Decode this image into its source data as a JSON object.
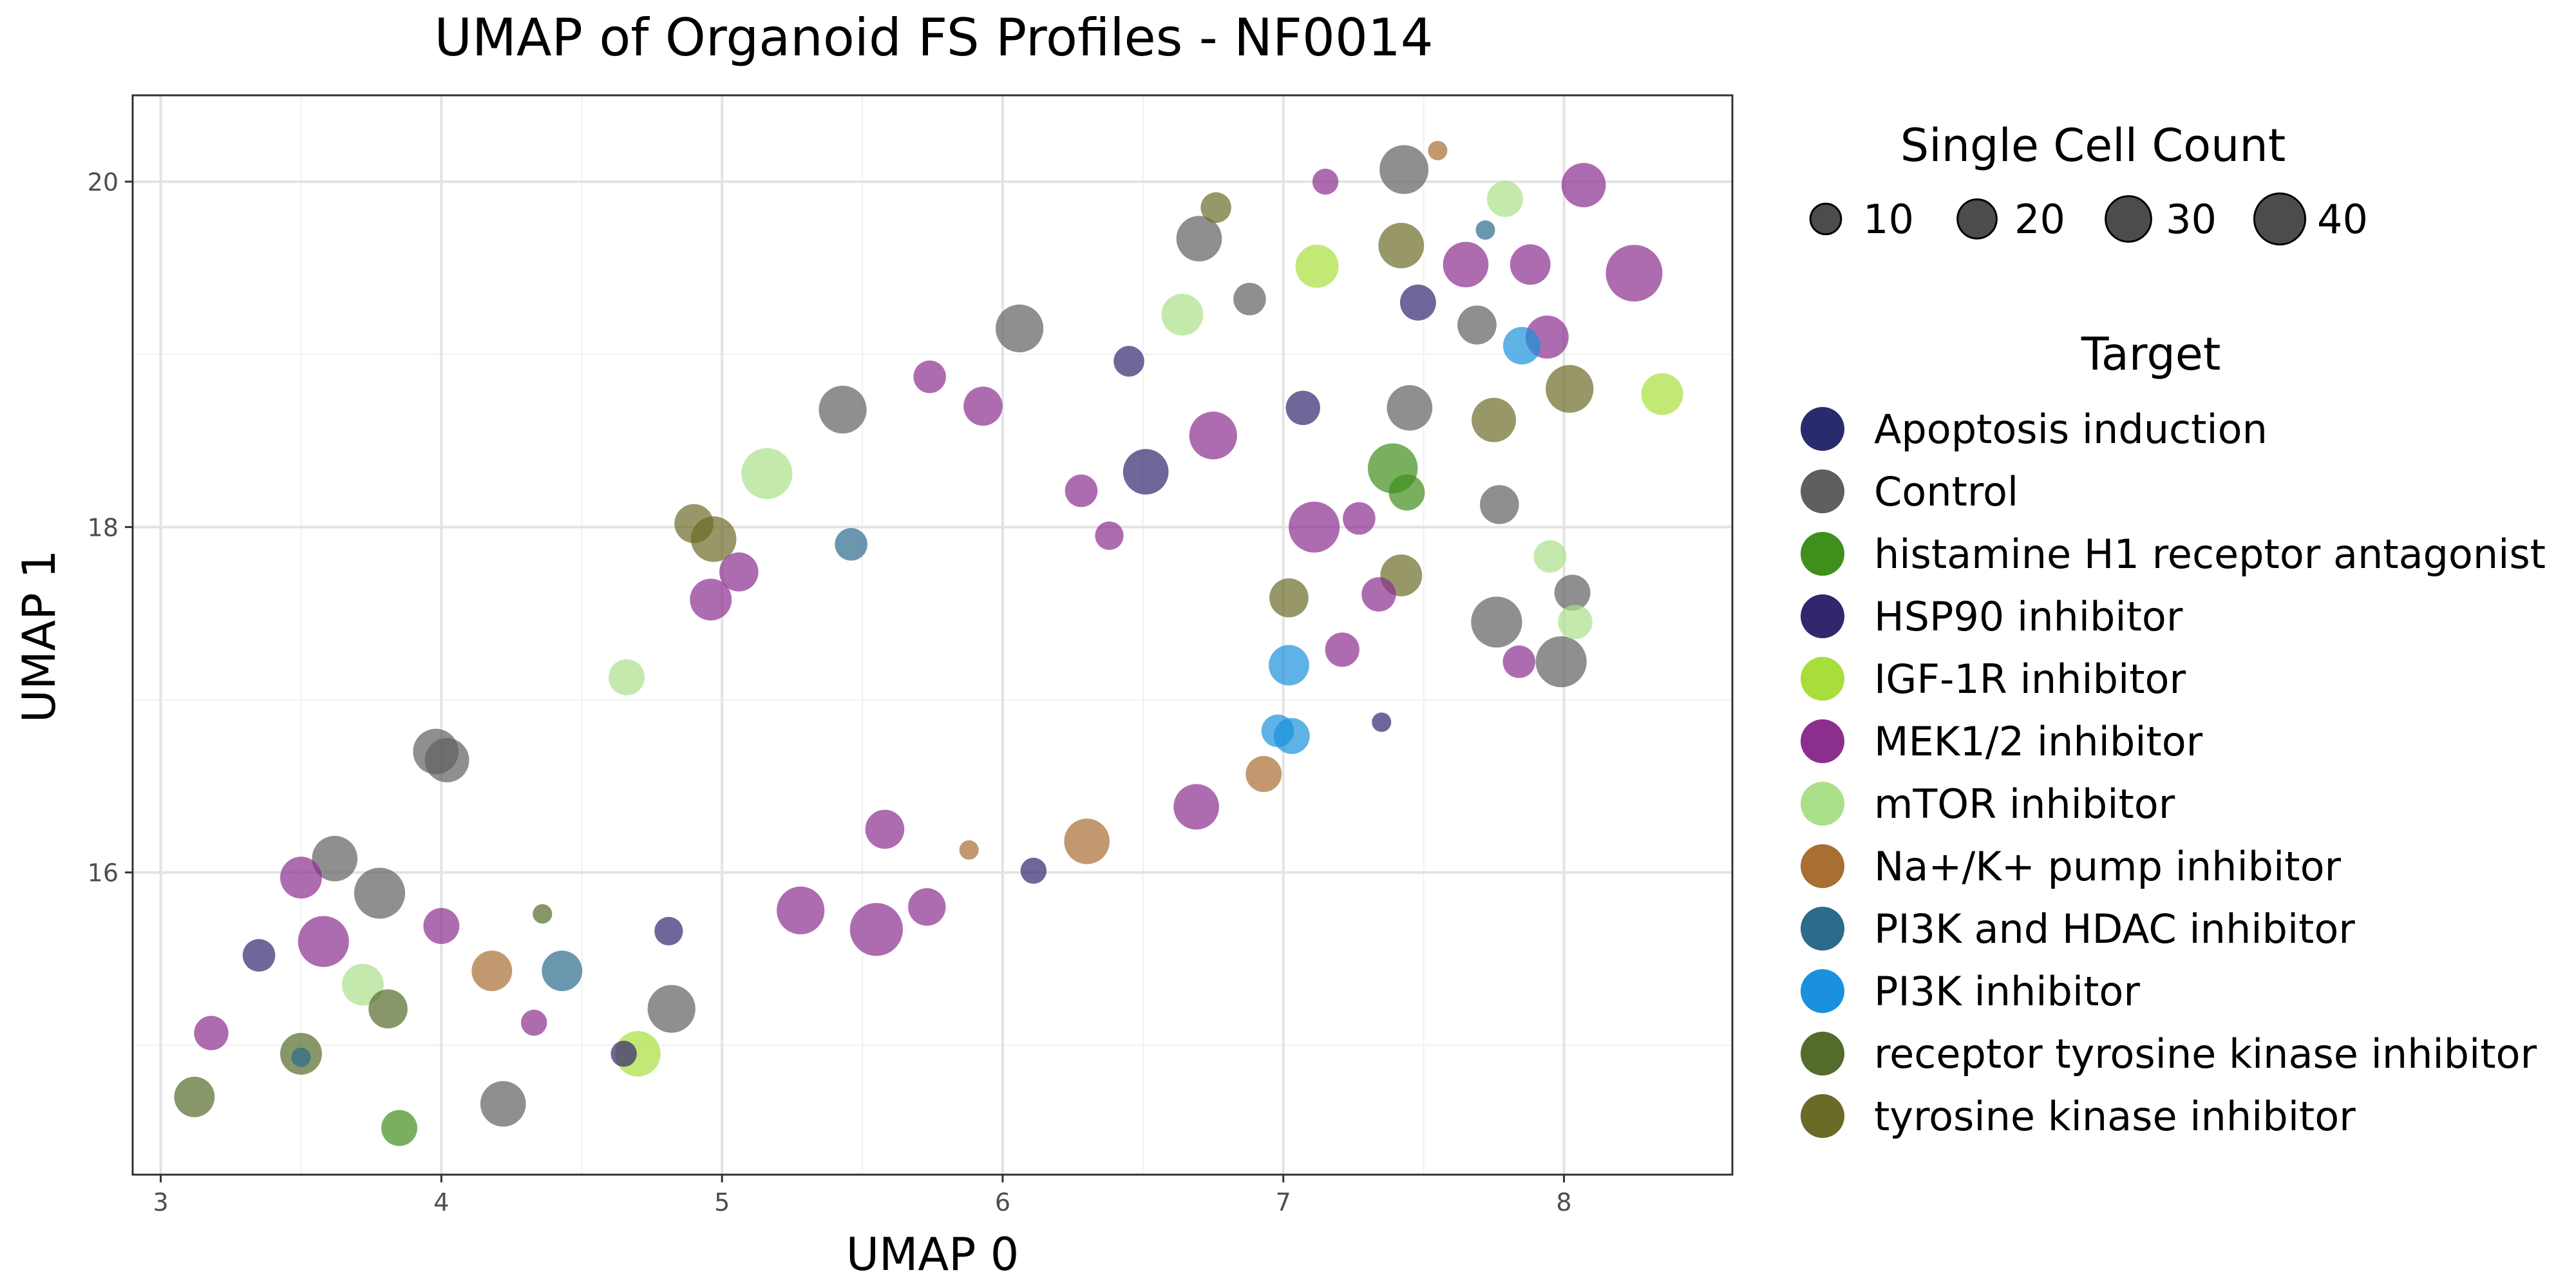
{
  "chart_data": {
    "type": "scatter",
    "title": "UMAP of Organoid FS Profiles - NF0014",
    "xlabel": "UMAP 0",
    "ylabel": "UMAP 1",
    "xlim": [
      2.9,
      8.6
    ],
    "ylim": [
      14.25,
      20.5
    ],
    "x_ticks": [
      3,
      4,
      5,
      6,
      7,
      8
    ],
    "y_ticks": [
      16,
      18,
      20
    ],
    "grid": true,
    "legend_placement": "right",
    "size_legend": {
      "title": "Single Cell Count",
      "values": [
        10,
        20,
        30,
        40
      ],
      "labels": [
        "10",
        "20",
        "30",
        "40"
      ]
    },
    "color_legend": {
      "title": "Target",
      "entries": [
        {
          "name": "Apoptosis induction",
          "color": "#2a2a6e"
        },
        {
          "name": "Control",
          "color": "#5f5f5f"
        },
        {
          "name": "histamine H1 receptor antagonist",
          "color": "#3f8f1d"
        },
        {
          "name": "HSP90 inhibitor",
          "color": "#33256e"
        },
        {
          "name": "IGF-1R inhibitor",
          "color": "#a8de3c"
        },
        {
          "name": "MEK1/2 inhibitor",
          "color": "#8b2e8e"
        },
        {
          "name": "mTOR inhibitor",
          "color": "#abe08a"
        },
        {
          "name": "Na+/K+ pump inhibitor",
          "color": "#a86e32"
        },
        {
          "name": "PI3K and HDAC inhibitor",
          "color": "#2c6b8b"
        },
        {
          "name": "PI3K inhibitor",
          "color": "#1991dc"
        },
        {
          "name": "receptor tyrosine kinase inhibitor",
          "color": "#556b2a"
        },
        {
          "name": "tyrosine kinase inhibitor",
          "color": "#6b6b28"
        }
      ]
    },
    "points": [
      {
        "x": 3.12,
        "y": 14.7,
        "size": 22,
        "target": "receptor tyrosine kinase inhibitor"
      },
      {
        "x": 3.18,
        "y": 15.07,
        "size": 14,
        "target": "MEK1/2 inhibitor"
      },
      {
        "x": 3.35,
        "y": 15.52,
        "size": 12,
        "target": "HSP90 inhibitor"
      },
      {
        "x": 3.5,
        "y": 15.97,
        "size": 24,
        "target": "MEK1/2 inhibitor"
      },
      {
        "x": 3.5,
        "y": 14.95,
        "size": 24,
        "target": "receptor tyrosine kinase inhibitor"
      },
      {
        "x": 3.5,
        "y": 14.93,
        "size": 2,
        "target": "PI3K and HDAC inhibitor"
      },
      {
        "x": 3.58,
        "y": 15.6,
        "size": 40,
        "target": "MEK1/2 inhibitor"
      },
      {
        "x": 3.62,
        "y": 16.08,
        "size": 30,
        "target": "Control"
      },
      {
        "x": 3.72,
        "y": 15.35,
        "size": 24,
        "target": "mTOR inhibitor"
      },
      {
        "x": 3.78,
        "y": 15.88,
        "size": 40,
        "target": "Control"
      },
      {
        "x": 3.81,
        "y": 15.21,
        "size": 20,
        "target": "receptor tyrosine kinase inhibitor"
      },
      {
        "x": 3.85,
        "y": 14.52,
        "size": 16,
        "target": "histamine H1 receptor antagonist"
      },
      {
        "x": 3.98,
        "y": 16.7,
        "size": 30,
        "target": "Control"
      },
      {
        "x": 4.0,
        "y": 15.69,
        "size": 16,
        "target": "MEK1/2 inhibitor"
      },
      {
        "x": 4.02,
        "y": 16.65,
        "size": 28,
        "target": "Control"
      },
      {
        "x": 4.18,
        "y": 15.43,
        "size": 22,
        "target": "Na+/K+ pump inhibitor"
      },
      {
        "x": 4.22,
        "y": 14.66,
        "size": 30,
        "target": "Control"
      },
      {
        "x": 4.33,
        "y": 15.13,
        "size": 6,
        "target": "MEK1/2 inhibitor"
      },
      {
        "x": 4.36,
        "y": 15.76,
        "size": 2,
        "target": "receptor tyrosine kinase inhibitor"
      },
      {
        "x": 4.43,
        "y": 15.43,
        "size": 22,
        "target": "PI3K and HDAC inhibitor"
      },
      {
        "x": 4.65,
        "y": 14.95,
        "size": 6,
        "target": "HSP90 inhibitor"
      },
      {
        "x": 4.66,
        "y": 17.13,
        "size": 16,
        "target": "mTOR inhibitor"
      },
      {
        "x": 4.7,
        "y": 14.95,
        "size": 30,
        "target": "IGF-1R inhibitor"
      },
      {
        "x": 4.81,
        "y": 15.66,
        "size": 8,
        "target": "HSP90 inhibitor"
      },
      {
        "x": 4.82,
        "y": 15.21,
        "size": 34,
        "target": "Control"
      },
      {
        "x": 4.9,
        "y": 18.02,
        "size": 20,
        "target": "tyrosine kinase inhibitor"
      },
      {
        "x": 4.96,
        "y": 17.58,
        "size": 24,
        "target": "MEK1/2 inhibitor"
      },
      {
        "x": 4.97,
        "y": 17.93,
        "size": 30,
        "target": "tyrosine kinase inhibitor"
      },
      {
        "x": 5.06,
        "y": 17.74,
        "size": 20,
        "target": "MEK1/2 inhibitor"
      },
      {
        "x": 5.16,
        "y": 18.31,
        "size": 40,
        "target": "mTOR inhibitor"
      },
      {
        "x": 5.28,
        "y": 15.78,
        "size": 34,
        "target": "MEK1/2 inhibitor"
      },
      {
        "x": 5.43,
        "y": 18.68,
        "size": 34,
        "target": "Control"
      },
      {
        "x": 5.46,
        "y": 17.9,
        "size": 12,
        "target": "PI3K and HDAC inhibitor"
      },
      {
        "x": 5.55,
        "y": 15.67,
        "size": 44,
        "target": "MEK1/2 inhibitor"
      },
      {
        "x": 5.58,
        "y": 16.25,
        "size": 20,
        "target": "MEK1/2 inhibitor"
      },
      {
        "x": 5.73,
        "y": 15.8,
        "size": 18,
        "target": "MEK1/2 inhibitor"
      },
      {
        "x": 5.74,
        "y": 18.87,
        "size": 12,
        "target": "MEK1/2 inhibitor"
      },
      {
        "x": 5.88,
        "y": 16.13,
        "size": 2,
        "target": "Na+/K+ pump inhibitor"
      },
      {
        "x": 5.93,
        "y": 18.7,
        "size": 20,
        "target": "MEK1/2 inhibitor"
      },
      {
        "x": 6.06,
        "y": 19.15,
        "size": 34,
        "target": "Control"
      },
      {
        "x": 6.11,
        "y": 16.01,
        "size": 6,
        "target": "HSP90 inhibitor"
      },
      {
        "x": 6.28,
        "y": 18.21,
        "size": 12,
        "target": "MEK1/2 inhibitor"
      },
      {
        "x": 6.3,
        "y": 16.18,
        "size": 30,
        "target": "Na+/K+ pump inhibitor"
      },
      {
        "x": 6.38,
        "y": 17.95,
        "size": 8,
        "target": "MEK1/2 inhibitor"
      },
      {
        "x": 6.45,
        "y": 18.96,
        "size": 10,
        "target": "HSP90 inhibitor"
      },
      {
        "x": 6.51,
        "y": 18.32,
        "size": 30,
        "target": "HSP90 inhibitor"
      },
      {
        "x": 6.64,
        "y": 19.23,
        "size": 24,
        "target": "mTOR inhibitor"
      },
      {
        "x": 6.69,
        "y": 16.38,
        "size": 30,
        "target": "MEK1/2 inhibitor"
      },
      {
        "x": 6.7,
        "y": 19.67,
        "size": 30,
        "target": "Control"
      },
      {
        "x": 6.75,
        "y": 18.53,
        "size": 34,
        "target": "MEK1/2 inhibitor"
      },
      {
        "x": 6.76,
        "y": 19.85,
        "size": 10,
        "target": "tyrosine kinase inhibitor"
      },
      {
        "x": 6.88,
        "y": 19.32,
        "size": 12,
        "target": "Control"
      },
      {
        "x": 6.93,
        "y": 16.57,
        "size": 16,
        "target": "Na+/K+ pump inhibitor"
      },
      {
        "x": 6.98,
        "y": 16.82,
        "size": 12,
        "target": "PI3K inhibitor"
      },
      {
        "x": 7.02,
        "y": 17.59,
        "size": 20,
        "target": "tyrosine kinase inhibitor"
      },
      {
        "x": 7.02,
        "y": 17.2,
        "size": 22,
        "target": "PI3K inhibitor"
      },
      {
        "x": 7.03,
        "y": 16.79,
        "size": 16,
        "target": "PI3K inhibitor"
      },
      {
        "x": 7.07,
        "y": 18.69,
        "size": 14,
        "target": "HSP90 inhibitor"
      },
      {
        "x": 7.11,
        "y": 18.0,
        "size": 40,
        "target": "MEK1/2 inhibitor"
      },
      {
        "x": 7.12,
        "y": 19.51,
        "size": 26,
        "target": "IGF-1R inhibitor"
      },
      {
        "x": 7.15,
        "y": 20.0,
        "size": 6,
        "target": "MEK1/2 inhibitor"
      },
      {
        "x": 7.21,
        "y": 17.29,
        "size": 14,
        "target": "MEK1/2 inhibitor"
      },
      {
        "x": 7.27,
        "y": 18.05,
        "size": 12,
        "target": "MEK1/2 inhibitor"
      },
      {
        "x": 7.34,
        "y": 17.61,
        "size": 14,
        "target": "MEK1/2 inhibitor"
      },
      {
        "x": 7.35,
        "y": 16.87,
        "size": 2,
        "target": "HSP90 inhibitor"
      },
      {
        "x": 7.39,
        "y": 18.34,
        "size": 38,
        "target": "histamine H1 receptor antagonist"
      },
      {
        "x": 7.42,
        "y": 19.63,
        "size": 30,
        "target": "tyrosine kinase inhibitor"
      },
      {
        "x": 7.42,
        "y": 17.72,
        "size": 24,
        "target": "tyrosine kinase inhibitor"
      },
      {
        "x": 7.43,
        "y": 20.07,
        "size": 36,
        "target": "Control"
      },
      {
        "x": 7.44,
        "y": 18.2,
        "size": 16,
        "target": "histamine H1 receptor antagonist"
      },
      {
        "x": 7.45,
        "y": 18.69,
        "size": 30,
        "target": "Control"
      },
      {
        "x": 7.48,
        "y": 19.3,
        "size": 16,
        "target": "HSP90 inhibitor"
      },
      {
        "x": 7.55,
        "y": 20.18,
        "size": 2,
        "target": "Na+/K+ pump inhibitor"
      },
      {
        "x": 7.65,
        "y": 19.52,
        "size": 30,
        "target": "MEK1/2 inhibitor"
      },
      {
        "x": 7.69,
        "y": 19.17,
        "size": 20,
        "target": "Control"
      },
      {
        "x": 7.72,
        "y": 19.72,
        "size": 2,
        "target": "PI3K and HDAC inhibitor"
      },
      {
        "x": 7.75,
        "y": 18.62,
        "size": 28,
        "target": "tyrosine kinase inhibitor"
      },
      {
        "x": 7.76,
        "y": 17.45,
        "size": 40,
        "target": "Control"
      },
      {
        "x": 7.77,
        "y": 18.13,
        "size": 20,
        "target": "Control"
      },
      {
        "x": 7.79,
        "y": 19.9,
        "size": 16,
        "target": "mTOR inhibitor"
      },
      {
        "x": 7.84,
        "y": 17.22,
        "size": 12,
        "target": "MEK1/2 inhibitor"
      },
      {
        "x": 7.85,
        "y": 19.05,
        "size": 18,
        "target": "PI3K inhibitor"
      },
      {
        "x": 7.88,
        "y": 19.52,
        "size": 22,
        "target": "MEK1/2 inhibitor"
      },
      {
        "x": 7.94,
        "y": 19.1,
        "size": 26,
        "target": "MEK1/2 inhibitor"
      },
      {
        "x": 7.95,
        "y": 17.83,
        "size": 12,
        "target": "mTOR inhibitor"
      },
      {
        "x": 7.99,
        "y": 17.22,
        "size": 40,
        "target": "Control"
      },
      {
        "x": 8.02,
        "y": 18.8,
        "size": 34,
        "target": "tyrosine kinase inhibitor"
      },
      {
        "x": 8.03,
        "y": 17.62,
        "size": 16,
        "target": "Control"
      },
      {
        "x": 8.04,
        "y": 17.45,
        "size": 14,
        "target": "mTOR inhibitor"
      },
      {
        "x": 8.07,
        "y": 19.98,
        "size": 28,
        "target": "MEK1/2 inhibitor"
      },
      {
        "x": 8.25,
        "y": 19.47,
        "size": 52,
        "target": "MEK1/2 inhibitor"
      },
      {
        "x": 8.35,
        "y": 18.77,
        "size": 24,
        "target": "IGF-1R inhibitor"
      }
    ]
  }
}
